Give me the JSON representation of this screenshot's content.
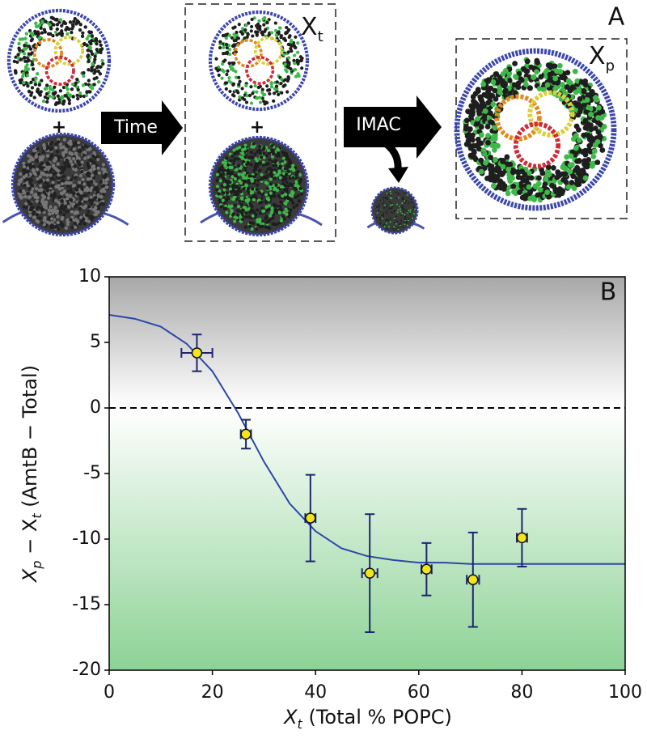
{
  "panel_a": {
    "label": "A",
    "arrow1": "Time",
    "arrow2": "IMAC",
    "plus": [
      "+",
      "+"
    ],
    "box1_label": {
      "main": "X",
      "sub": "t"
    },
    "box2_label": {
      "main": "X",
      "sub": "p"
    }
  },
  "chart_data": {
    "type": "scatter",
    "panel_label": "B",
    "xlabel": {
      "main": "X",
      "sub": "t",
      "rest": "  (Total % POPC)"
    },
    "ylabel": {
      "main1": "X",
      "sub1": "p",
      "mid": " − X",
      "sub2": "t",
      "rest": "  (AmtB − Total)"
    },
    "xlim": [
      0,
      100
    ],
    "ylim": [
      -20,
      10
    ],
    "xticks": [
      0,
      20,
      40,
      60,
      80,
      100
    ],
    "yticks": [
      -20,
      -15,
      -10,
      -5,
      0,
      5,
      10
    ],
    "reference_line": 0,
    "series": [
      {
        "type": "scatter",
        "color": "#f2e51d",
        "error_color": "#1c2570",
        "x": [
          17,
          26.5,
          39,
          50.5,
          61.5,
          70.5,
          80
        ],
        "values": [
          4.2,
          -2.0,
          -8.4,
          -12.6,
          -12.3,
          -13.1,
          -9.9
        ],
        "xerr": [
          3,
          1,
          1,
          1.5,
          1,
          1.2,
          1
        ],
        "yerr": [
          1.4,
          1.1,
          3.3,
          4.5,
          2.0,
          3.6,
          2.2
        ]
      },
      {
        "type": "line",
        "color": "#2c47a8",
        "x": [
          0,
          5,
          10,
          15,
          20,
          25,
          30,
          35,
          40,
          45,
          50,
          55,
          60,
          65,
          70,
          75,
          80,
          85,
          90,
          95,
          100
        ],
        "values": [
          7.1,
          6.8,
          6.2,
          4.9,
          2.8,
          -0.4,
          -4.1,
          -7.3,
          -9.4,
          -10.7,
          -11.3,
          -11.6,
          -11.8,
          -11.8,
          -11.9,
          -11.9,
          -11.9,
          -11.9,
          -11.9,
          -11.9,
          -11.9
        ]
      }
    ]
  }
}
